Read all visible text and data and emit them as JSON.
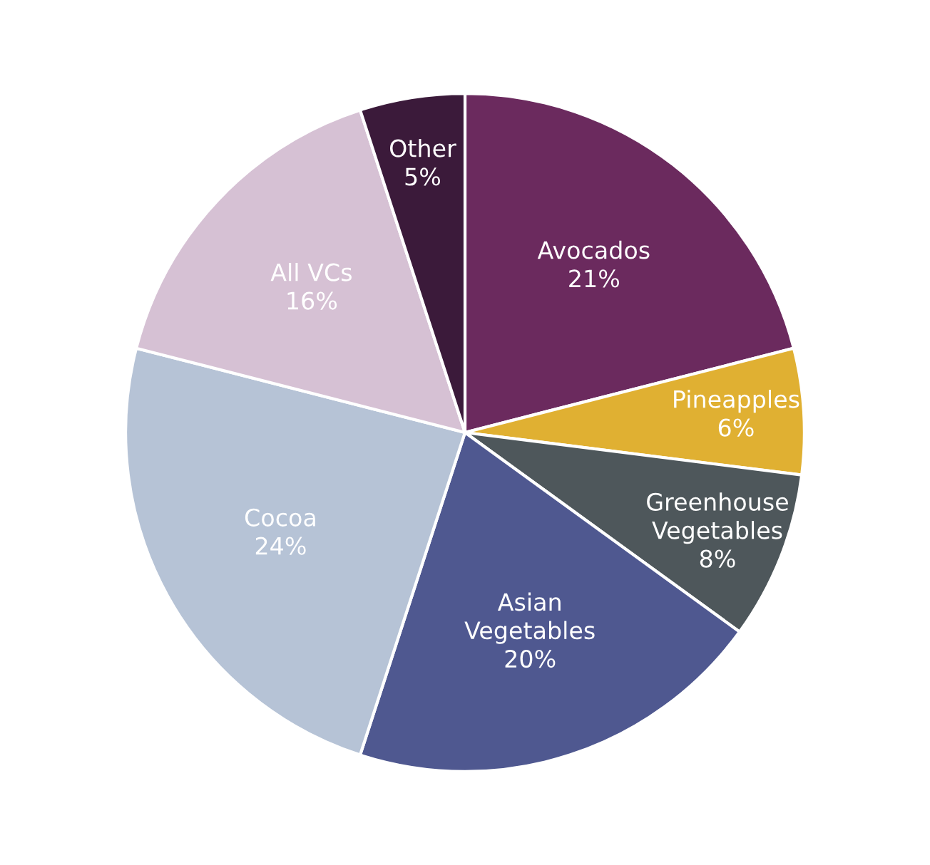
{
  "chart_data": {
    "type": "pie",
    "categories": [
      "Avocados",
      "Pineapples",
      "Greenhouse\nVegetables",
      "Asian\nVegetables",
      "Cocoa",
      "All VCs",
      "Other"
    ],
    "values": [
      21,
      6,
      8,
      20,
      24,
      16,
      5
    ],
    "value_labels": [
      "21%",
      "6%",
      "8%",
      "20%",
      "24%",
      "16%",
      "5%"
    ],
    "colors": [
      "#6b2a5e",
      "#e0b032",
      "#4e575b",
      "#4f5890",
      "#b6c3d6",
      "#d6c1d4",
      "#3b1a3a"
    ]
  }
}
